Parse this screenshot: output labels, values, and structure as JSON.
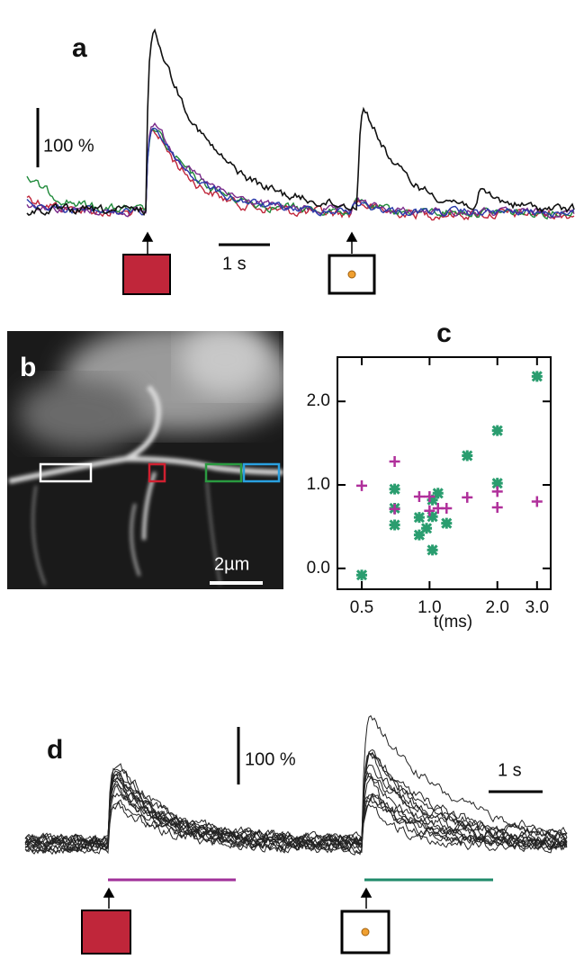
{
  "panels": {
    "a": {
      "label": "a",
      "amplitude_bar": "100 %",
      "time_bar": "1 s"
    },
    "b": {
      "label": "b",
      "scale_bar": "2µm"
    },
    "d": {
      "label": "d",
      "amplitude_bar": "100 %",
      "time_bar": "1 s"
    }
  },
  "chart_data": {
    "type": "scatter",
    "title": "c",
    "xlabel": "t(ms)",
    "log_x": true,
    "xlim": [
      0.39,
      3.45
    ],
    "ylim": [
      -0.25,
      2.53
    ],
    "xticks": [
      0.5,
      {
        "value": 1,
        "label": "1.0"
      },
      {
        "value": 2,
        "label": "2.0"
      },
      {
        "value": 3,
        "label": "3.0"
      }
    ],
    "yticks": [
      {
        "value": 0,
        "label": "0.0"
      },
      {
        "value": 1,
        "label": "1.0"
      },
      {
        "value": 2,
        "label": "2.0"
      }
    ],
    "series": [
      {
        "color": "#2a9d6f",
        "marker": "asterisk",
        "x": [
          0.5,
          0.7,
          0.7,
          0.7,
          0.9,
          0.9,
          0.97,
          1.03,
          1.03,
          1.03,
          1.09,
          1.19,
          1.47,
          2.0,
          2.0,
          3.0
        ],
        "values": [
          -0.08,
          0.95,
          0.72,
          0.52,
          0.61,
          0.4,
          0.48,
          0.82,
          0.62,
          0.22,
          0.9,
          0.54,
          1.35,
          1.65,
          1.02,
          2.3
        ]
      },
      {
        "color": "#b0309b",
        "marker": "plus",
        "x": [
          0.5,
          0.7,
          0.7,
          0.9,
          1.0,
          1.0,
          1.09,
          1.19,
          1.47,
          2.0,
          2.0,
          3.0
        ],
        "values": [
          0.99,
          1.28,
          0.71,
          0.86,
          0.86,
          0.69,
          0.72,
          0.72,
          0.85,
          0.92,
          0.73,
          0.8
        ]
      }
    ]
  }
}
